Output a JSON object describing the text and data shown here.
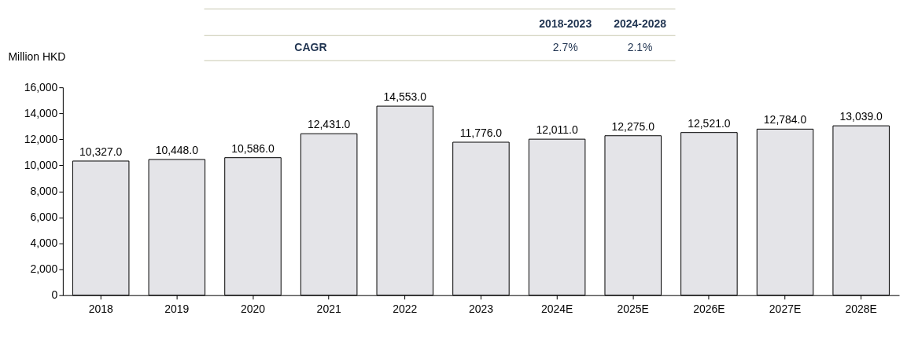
{
  "chart_data": {
    "type": "bar",
    "ylabel": "Million HKD",
    "categories": [
      "2018",
      "2019",
      "2020",
      "2021",
      "2022",
      "2023",
      "2024E",
      "2025E",
      "2026E",
      "2027E",
      "2028E"
    ],
    "values": [
      10327,
      10448,
      10586,
      12431,
      14553,
      11776,
      12011,
      12275,
      12521,
      12784,
      13039
    ],
    "value_labels": [
      "10,327.0",
      "10,448.0",
      "10,586.0",
      "12,431.0",
      "14,553.0",
      "11,776.0",
      "12,011.0",
      "12,275.0",
      "12,521.0",
      "12,784.0",
      "13,039.0"
    ],
    "color": "#e4e4e8",
    "ylim": [
      0,
      16000
    ],
    "yticks": [
      {
        "value": 0,
        "label": "0"
      },
      {
        "value": 2000,
        "label": "2,000"
      },
      {
        "value": 4000,
        "label": "4,000"
      },
      {
        "value": 6000,
        "label": "6,000"
      },
      {
        "value": 8000,
        "label": "8,000"
      },
      {
        "value": 10000,
        "label": "10,000"
      },
      {
        "value": 12000,
        "label": "12,000"
      },
      {
        "value": 14000,
        "label": "14,000"
      },
      {
        "value": 16000,
        "label": "16,000"
      }
    ],
    "annotations": [
      "2018-2023",
      "2024-2028",
      "CAGR",
      "2.7%",
      "2.1%"
    ],
    "grid": false
  }
}
